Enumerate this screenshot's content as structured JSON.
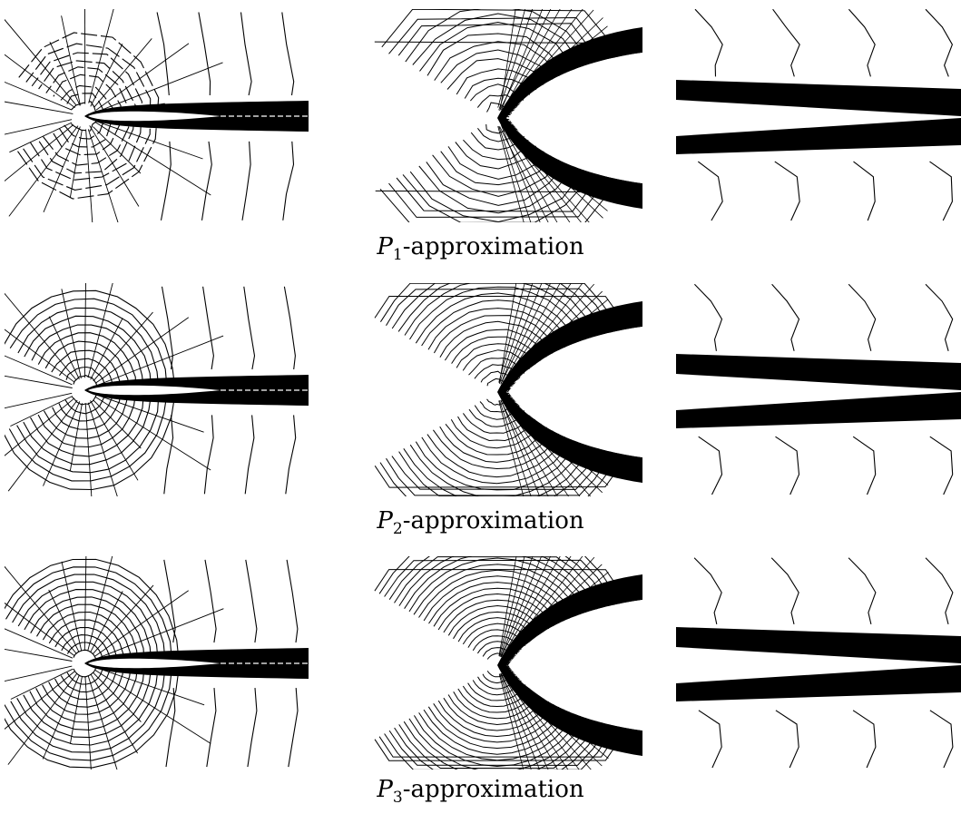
{
  "figure": {
    "rows": [
      {
        "caption": {
          "letter": "P",
          "sub": "1",
          "text": "-approximation"
        },
        "panels": [
          "leading-edge-overview",
          "leading-edge-zoom",
          "trailing-edge-zoom"
        ],
        "style": "jagged"
      },
      {
        "caption": {
          "letter": "P",
          "sub": "2",
          "text": "-approximation"
        },
        "panels": [
          "leading-edge-overview",
          "leading-edge-zoom",
          "trailing-edge-zoom"
        ],
        "style": "smoother"
      },
      {
        "caption": {
          "letter": "P",
          "sub": "3",
          "text": "-approximation"
        },
        "panels": [
          "leading-edge-overview",
          "leading-edge-zoom",
          "trailing-edge-zoom"
        ],
        "style": "smooth"
      }
    ],
    "colors": {
      "lines": "#000000",
      "background": "#ffffff"
    }
  }
}
